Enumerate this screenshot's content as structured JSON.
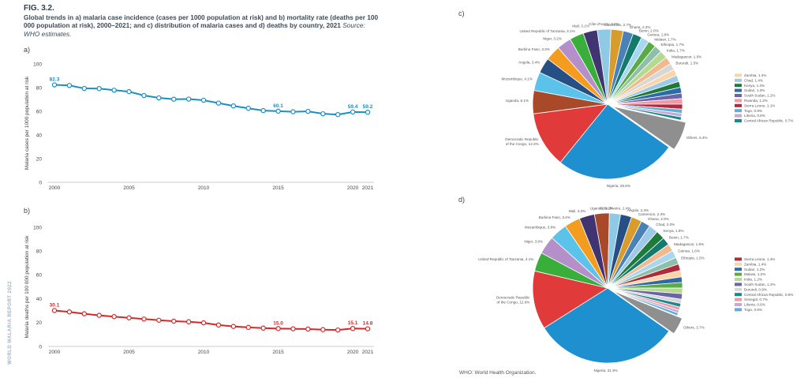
{
  "figure": {
    "label": "FIG. 3.2.",
    "title": "Global trends in a) malaria case incidence (cases per 1000 population at risk) and b) mortality rate (deaths per 100 000 population at risk), 2000–2021; and c) distribution of malaria cases and d) deaths by country, 2021",
    "source": "Source: WHO estimates.",
    "side_text": "WORLD MALARIA REPORT 2022",
    "footnote": "WHO: World Health Organization.",
    "panel_letters": [
      "a)",
      "b)",
      "c)",
      "d)"
    ]
  },
  "chart_data": [
    {
      "type": "line",
      "panel": "a)",
      "ylabel": "Malaria cases per 1000 population at risk",
      "ylim": [
        0,
        100
      ],
      "yticks": [
        0,
        20,
        40,
        60,
        80,
        100
      ],
      "xticks": [
        2000,
        2005,
        2010,
        2015,
        2020,
        2021
      ],
      "color": "#1a8fc0",
      "grid": false,
      "x": [
        2000,
        2001,
        2002,
        2003,
        2004,
        2005,
        2006,
        2007,
        2008,
        2009,
        2010,
        2011,
        2012,
        2013,
        2014,
        2015,
        2016,
        2017,
        2018,
        2019,
        2020,
        2021
      ],
      "values": [
        82.3,
        81.8,
        79.3,
        79.2,
        77.8,
        76.6,
        73.3,
        71.3,
        70.2,
        70.3,
        69.3,
        66.9,
        64.5,
        62.5,
        60.6,
        60.1,
        59.6,
        59.9,
        57.9,
        57.2,
        59.4,
        59.2
      ],
      "labels": [
        {
          "x": 2000,
          "text": "82.3"
        },
        {
          "x": 2015,
          "text": "60.1"
        },
        {
          "x": 2020,
          "text": "59.4"
        },
        {
          "x": 2021,
          "text": "59.2"
        }
      ]
    },
    {
      "type": "line",
      "panel": "b)",
      "ylabel": "Malaria deaths per 100 000 population at risk",
      "ylim": [
        0,
        100
      ],
      "yticks": [
        0,
        20,
        40,
        60,
        80,
        100
      ],
      "xticks": [
        2000,
        2005,
        2010,
        2015,
        2020,
        2021
      ],
      "color": "#d22a2a",
      "grid": false,
      "x": [
        2000,
        2001,
        2002,
        2003,
        2004,
        2005,
        2006,
        2007,
        2008,
        2009,
        2010,
        2011,
        2012,
        2013,
        2014,
        2015,
        2016,
        2017,
        2018,
        2019,
        2020,
        2021
      ],
      "values": [
        30.1,
        29.0,
        27.4,
        26.1,
        25.0,
        24.0,
        23.0,
        22.0,
        21.2,
        20.7,
        19.8,
        18.0,
        16.8,
        16.0,
        15.4,
        15.0,
        14.8,
        14.6,
        14.1,
        13.8,
        15.1,
        14.8
      ],
      "labels": [
        {
          "x": 2000,
          "text": "30.1"
        },
        {
          "x": 2015,
          "text": "15.0"
        },
        {
          "x": 2020,
          "text": "15.1"
        },
        {
          "x": 2021,
          "text": "14.8"
        }
      ]
    },
    {
      "type": "pie",
      "panel": "c)",
      "slices": [
        {
          "label": "Nigeria, 26.6%",
          "value": 26.6,
          "color": "#1e8fcf"
        },
        {
          "label": "Democratic Republic of the Congo, 12.3%",
          "value": 12.3,
          "color": "#e03a3a"
        },
        {
          "label": "Uganda, 5.1%",
          "value": 5.1,
          "color": "#a84a2a"
        },
        {
          "label": "Mozambique, 4.1%",
          "value": 4.1,
          "color": "#5bc3ea"
        },
        {
          "label": "Angola, 3.4%",
          "value": 3.4,
          "color": "#264f86"
        },
        {
          "label": "Burkina Faso, 3.3%",
          "value": 3.3,
          "color": "#f39c1f"
        },
        {
          "label": "Niger, 3.2%",
          "value": 3.2,
          "color": "#b58fc9"
        },
        {
          "label": "United Republic of Tanzania, 3.1%",
          "value": 3.1,
          "color": "#3aae3a"
        },
        {
          "label": "Mali, 3.1%",
          "value": 3.1,
          "color": "#403570"
        },
        {
          "label": "Côte d'Ivoire, 3.0%",
          "value": 3.0,
          "color": "#8ecae6"
        },
        {
          "label": "Cameroon, 2.7%",
          "value": 2.7,
          "color": "#d89c2c"
        },
        {
          "label": "Ghana, 2.2%",
          "value": 2.2,
          "color": "#4a82b8"
        },
        {
          "label": "Benin, 2.0%",
          "value": 2.0,
          "color": "#157a6e"
        },
        {
          "label": "Guinea, 1.8%",
          "value": 1.8,
          "color": "#a7d8f0"
        },
        {
          "label": "Malawi, 1.7%",
          "value": 1.7,
          "color": "#5aaa45"
        },
        {
          "label": "Ethiopia, 1.7%",
          "value": 1.7,
          "color": "#8fbfa8"
        },
        {
          "label": "India, 1.7%",
          "value": 1.7,
          "color": "#b5d98f"
        },
        {
          "label": "Madagascar, 1.6%",
          "value": 1.6,
          "color": "#f2b98e"
        },
        {
          "label": "Burundi, 1.5%",
          "value": 1.5,
          "color": "#d7d7d7"
        },
        {
          "label": "Zambia, 1.4%",
          "value": 1.4,
          "color": "#f8d6a8"
        },
        {
          "label": "Chad, 1.4%",
          "value": 1.4,
          "color": "#9ec9e8"
        },
        {
          "label": "Kenya, 1.3%",
          "value": 1.3,
          "color": "#1f7a3a"
        },
        {
          "label": "Sudan, 1.3%",
          "value": 1.3,
          "color": "#2d6aa8"
        },
        {
          "label": "South Sudan, 1.2%",
          "value": 1.2,
          "color": "#6c63a9"
        },
        {
          "label": "Rwanda, 1.2%",
          "value": 1.2,
          "color": "#f19aa6"
        },
        {
          "label": "Sierra Leone, 1.1%",
          "value": 1.1,
          "color": "#b22a3a"
        },
        {
          "label": "Togo, 0.9%",
          "value": 0.9,
          "color": "#5fb0d9"
        },
        {
          "label": "Liberia, 0.8%",
          "value": 0.8,
          "color": "#c9a7d6"
        },
        {
          "label": "Central African Republic, 0.7%",
          "value": 0.7,
          "color": "#178a8a"
        },
        {
          "label": "Others, 6.4%",
          "value": 6.4,
          "color": "#8f8f8f",
          "explode": true
        }
      ]
    },
    {
      "type": "pie",
      "panel": "d)",
      "slices": [
        {
          "label": "Nigeria, 31.3%",
          "value": 31.3,
          "color": "#1e8fcf"
        },
        {
          "label": "Democratic Republic of the Congo, 12.6%",
          "value": 12.6,
          "color": "#e03a3a"
        },
        {
          "label": "United Republic of Tanzania, 4.1%",
          "value": 4.1,
          "color": "#3aae3a"
        },
        {
          "label": "Niger, 3.9%",
          "value": 3.9,
          "color": "#b58fc9"
        },
        {
          "label": "Mozambique, 3.8%",
          "value": 3.8,
          "color": "#5bc3ea"
        },
        {
          "label": "Burkina Faso, 3.4%",
          "value": 3.4,
          "color": "#f39c1f"
        },
        {
          "label": "Mali, 3.3%",
          "value": 3.3,
          "color": "#403570"
        },
        {
          "label": "Uganda, 3.2%",
          "value": 3.2,
          "color": "#a84a2a"
        },
        {
          "label": "Côte d'Ivoire, 2.4%",
          "value": 2.4,
          "color": "#8ecae6"
        },
        {
          "label": "Angola, 2.4%",
          "value": 2.4,
          "color": "#264f86"
        },
        {
          "label": "Cameroon, 2.3%",
          "value": 2.3,
          "color": "#d89c2c"
        },
        {
          "label": "Ghana, 2.0%",
          "value": 2.0,
          "color": "#4a82b8"
        },
        {
          "label": "Chad, 2.0%",
          "value": 2.0,
          "color": "#9ec9e8"
        },
        {
          "label": "Kenya, 1.9%",
          "value": 1.9,
          "color": "#1f7a3a"
        },
        {
          "label": "Benin, 1.7%",
          "value": 1.7,
          "color": "#157a6e"
        },
        {
          "label": "Madagascar, 1.6%",
          "value": 1.6,
          "color": "#f2b98e"
        },
        {
          "label": "Guinea, 1.6%",
          "value": 1.6,
          "color": "#a7d8f0"
        },
        {
          "label": "Ethiopia, 1.5%",
          "value": 1.5,
          "color": "#8fbfa8"
        },
        {
          "label": "Sierra Leone, 1.4%",
          "value": 1.4,
          "color": "#b22a3a"
        },
        {
          "label": "Zambia, 1.4%",
          "value": 1.4,
          "color": "#f8d6a8"
        },
        {
          "label": "Sudan, 1.2%",
          "value": 1.2,
          "color": "#2d6aa8"
        },
        {
          "label": "Malawi, 1.2%",
          "value": 1.2,
          "color": "#5aaa45"
        },
        {
          "label": "India, 1.2%",
          "value": 1.2,
          "color": "#b5d98f"
        },
        {
          "label": "South Sudan, 1.2%",
          "value": 1.2,
          "color": "#6c63a9"
        },
        {
          "label": "Burundi, 0.9%",
          "value": 0.9,
          "color": "#d7d7d7"
        },
        {
          "label": "Central African Republic, 0.8%",
          "value": 0.8,
          "color": "#178a8a"
        },
        {
          "label": "Senegal, 0.7%",
          "value": 0.7,
          "color": "#f19aa6"
        },
        {
          "label": "Liberia, 0.6%",
          "value": 0.6,
          "color": "#c9a7d6"
        },
        {
          "label": "Togo, 0.6%",
          "value": 0.6,
          "color": "#5fb0d9"
        },
        {
          "label": "Others, 3.7%",
          "value": 3.7,
          "color": "#8f8f8f",
          "explode": true
        }
      ]
    }
  ]
}
